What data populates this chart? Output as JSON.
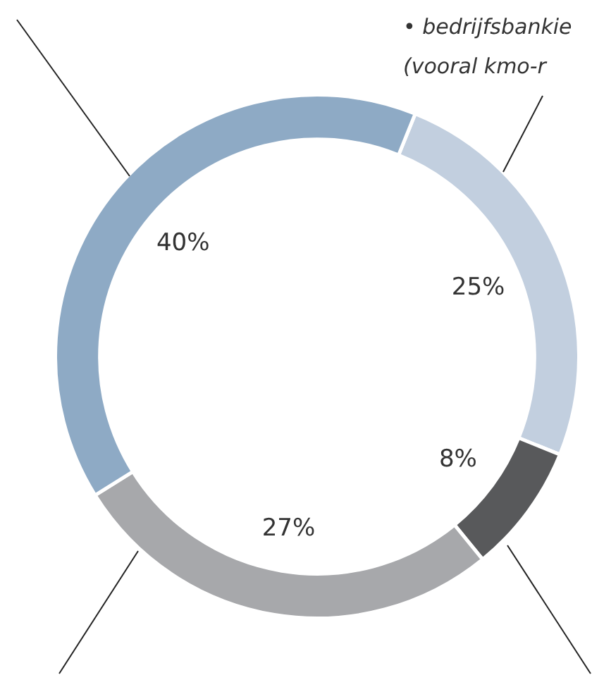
{
  "chart_data": {
    "type": "donut",
    "categories": [
      null,
      null,
      null,
      null
    ],
    "values": [
      25,
      8,
      27,
      40
    ],
    "colors": [
      "#c2cfdf",
      "#58595b",
      "#a7a8ab",
      "#8eaac5"
    ],
    "value_labels": [
      "25%",
      "8%",
      "27%",
      "40%"
    ],
    "annotations": [
      "• bedrijfsbankie",
      "(vooral kmo-r"
    ]
  }
}
